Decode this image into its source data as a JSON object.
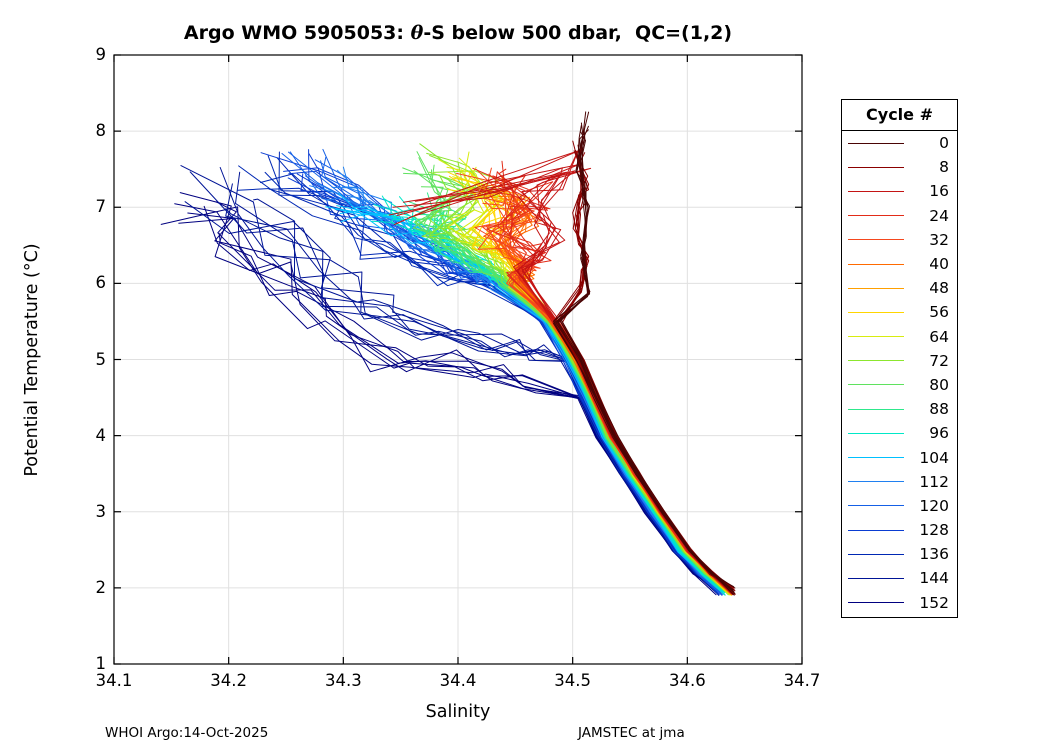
{
  "footer": {
    "left": "WHOI Argo:14-Oct-2025",
    "right": "JAMSTEC at jma"
  },
  "chart_data": {
    "type": "line",
    "title_parts": {
      "pre": "Argo WMO 5905053: ",
      "theta": "θ",
      "post": "-S below 500 dbar,  QC=(1,2)"
    },
    "xlabel": "Salinity",
    "ylabel": "Potential Temperature (°C)",
    "xlim": [
      34.1,
      34.7
    ],
    "ylim": [
      1,
      9
    ],
    "xticks": [
      "34.1",
      "34.2",
      "34.3",
      "34.4",
      "34.5",
      "34.6",
      "34.7"
    ],
    "yticks": [
      "1",
      "2",
      "3",
      "4",
      "5",
      "6",
      "7",
      "8",
      "9"
    ],
    "grid": true,
    "grid_color": "#e0e0e0",
    "axis_color": "#000000",
    "legend_title": "Cycle #",
    "legend_position": "right-outside",
    "lines_per_series": 8,
    "description": "Theta-S profiles below 500 dbar for Argo float WMO 5905053, one curve per cycle, colored from dark red (cycle 0) through jet colormap to dark navy (cycle 152). All profiles converge onto a tight salinity spine that descends to S=34.63, T=1.95.",
    "spine": [
      [
        34.455,
        6.0
      ],
      [
        34.478,
        5.5
      ],
      [
        34.498,
        5.0
      ],
      [
        34.513,
        4.5
      ],
      [
        34.528,
        4.0
      ],
      [
        34.548,
        3.5
      ],
      [
        34.57,
        3.0
      ],
      [
        34.593,
        2.5
      ],
      [
        34.612,
        2.2
      ],
      [
        34.632,
        1.95
      ]
    ],
    "series": [
      {
        "name": "0",
        "color": "#4A0505",
        "scatter": 0.004,
        "tscatter": 0.15,
        "spine_offset": 0.009,
        "join_t": 5.6,
        "upper": [
          [
            34.511,
            8.12
          ],
          [
            34.506,
            7.55
          ],
          [
            34.513,
            6.95
          ],
          [
            34.509,
            6.35
          ],
          [
            34.514,
            5.85
          ]
        ]
      },
      {
        "name": "8",
        "color": "#8B0000",
        "scatter": 0.006,
        "tscatter": 0.2,
        "spine_offset": 0.0085,
        "join_t": 5.8,
        "upper": [
          [
            34.506,
            7.82
          ],
          [
            34.512,
            7.35
          ],
          [
            34.504,
            6.85
          ],
          [
            34.511,
            6.3
          ],
          [
            34.507,
            5.95
          ]
        ]
      },
      {
        "name": "16",
        "color": "#C41414",
        "scatter": 0.02,
        "tscatter": 0.25,
        "spine_offset": 0.008,
        "join_t": 6.0,
        "upper": [
          [
            34.36,
            7.0
          ],
          [
            34.5,
            7.55
          ],
          [
            34.46,
            7.05
          ],
          [
            34.485,
            6.6
          ],
          [
            34.455,
            6.15
          ]
        ]
      },
      {
        "name": "24",
        "color": "#E22C18",
        "scatter": 0.022,
        "tscatter": 0.25,
        "spine_offset": 0.0075,
        "join_t": 6.0,
        "upper": [
          [
            34.43,
            7.45
          ],
          [
            34.465,
            7.15
          ],
          [
            34.435,
            6.75
          ],
          [
            34.47,
            6.4
          ],
          [
            34.45,
            6.1
          ]
        ]
      },
      {
        "name": "32",
        "color": "#F5481E",
        "scatter": 0.02,
        "tscatter": 0.25,
        "spine_offset": 0.007,
        "join_t": 6.0,
        "upper": [
          [
            34.41,
            7.3
          ],
          [
            34.455,
            7.0
          ],
          [
            34.425,
            6.6
          ],
          [
            34.462,
            6.25
          ],
          [
            34.448,
            6.05
          ]
        ]
      },
      {
        "name": "40",
        "color": "#FF6A00",
        "scatter": 0.016,
        "tscatter": 0.22,
        "spine_offset": 0.0065,
        "join_t": 6.0,
        "upper": [
          [
            34.44,
            7.25
          ],
          [
            34.462,
            6.9
          ],
          [
            34.442,
            6.5
          ],
          [
            34.46,
            6.15
          ],
          [
            34.452,
            6.02
          ]
        ]
      },
      {
        "name": "48",
        "color": "#FFA000",
        "scatter": 0.015,
        "tscatter": 0.22,
        "spine_offset": 0.006,
        "join_t": 6.0,
        "upper": [
          [
            34.432,
            7.3
          ],
          [
            34.452,
            6.95
          ],
          [
            34.435,
            6.55
          ],
          [
            34.458,
            6.12
          ],
          [
            34.45,
            6.0
          ]
        ]
      },
      {
        "name": "56",
        "color": "#FFD500",
        "scatter": 0.016,
        "tscatter": 0.22,
        "spine_offset": 0.006,
        "join_t": 6.0,
        "upper": [
          [
            34.405,
            7.32
          ],
          [
            34.44,
            7.0
          ],
          [
            34.42,
            6.6
          ],
          [
            34.452,
            6.2
          ],
          [
            34.448,
            6.02
          ]
        ]
      },
      {
        "name": "64",
        "color": "#D8EC10",
        "scatter": 0.018,
        "tscatter": 0.25,
        "spine_offset": 0.005,
        "join_t": 6.0,
        "upper": [
          [
            34.4,
            7.5
          ],
          [
            34.432,
            7.1
          ],
          [
            34.402,
            6.7
          ],
          [
            34.44,
            6.28
          ],
          [
            34.45,
            6.05
          ]
        ]
      },
      {
        "name": "72",
        "color": "#8CE62E",
        "scatter": 0.02,
        "tscatter": 0.28,
        "spine_offset": 0.0045,
        "join_t": 6.0,
        "upper": [
          [
            34.385,
            7.62
          ],
          [
            34.42,
            7.2
          ],
          [
            34.382,
            6.8
          ],
          [
            34.425,
            6.42
          ],
          [
            34.445,
            6.08
          ]
        ]
      },
      {
        "name": "80",
        "color": "#5FE25F",
        "scatter": 0.02,
        "tscatter": 0.25,
        "spine_offset": 0.004,
        "join_t": 6.0,
        "upper": [
          [
            34.36,
            7.5
          ],
          [
            34.4,
            7.1
          ],
          [
            34.372,
            6.75
          ],
          [
            34.41,
            6.38
          ],
          [
            34.44,
            6.05
          ]
        ]
      },
      {
        "name": "88",
        "color": "#2EE88C",
        "scatter": 0.016,
        "tscatter": 0.22,
        "spine_offset": 0.003,
        "join_t": 6.0,
        "upper": [
          [
            34.37,
            7.0
          ],
          [
            34.398,
            6.78
          ],
          [
            34.38,
            6.5
          ],
          [
            34.418,
            6.22
          ],
          [
            34.44,
            6.02
          ]
        ]
      },
      {
        "name": "96",
        "color": "#00E8C8",
        "scatter": 0.016,
        "tscatter": 0.2,
        "spine_offset": 0.001,
        "join_t": 6.0,
        "upper": [
          [
            34.335,
            7.0
          ],
          [
            34.37,
            6.78
          ],
          [
            34.4,
            6.5
          ],
          [
            34.425,
            6.2
          ],
          [
            34.44,
            6.0
          ]
        ]
      },
      {
        "name": "104",
        "color": "#00C0FF",
        "scatter": 0.016,
        "tscatter": 0.2,
        "spine_offset": 0.0,
        "join_t": 6.0,
        "upper": [
          [
            34.3,
            7.0
          ],
          [
            34.35,
            6.75
          ],
          [
            34.385,
            6.5
          ],
          [
            34.418,
            6.15
          ],
          [
            34.438,
            6.0
          ]
        ]
      },
      {
        "name": "112",
        "color": "#2080F0",
        "scatter": 0.02,
        "tscatter": 0.25,
        "spine_offset": -0.001,
        "join_t": 6.0,
        "upper": [
          [
            34.285,
            7.3
          ],
          [
            34.33,
            6.9
          ],
          [
            34.372,
            6.55
          ],
          [
            34.41,
            6.15
          ],
          [
            34.435,
            6.0
          ]
        ]
      },
      {
        "name": "120",
        "color": "#1560E6",
        "scatter": 0.022,
        "tscatter": 0.28,
        "spine_offset": -0.002,
        "join_t": 6.0,
        "upper": [
          [
            34.265,
            7.5
          ],
          [
            34.32,
            7.0
          ],
          [
            34.362,
            6.6
          ],
          [
            34.405,
            6.2
          ],
          [
            34.432,
            6.0
          ]
        ]
      },
      {
        "name": "128",
        "color": "#0A3CD2",
        "scatter": 0.024,
        "tscatter": 0.3,
        "spine_offset": -0.003,
        "join_t": 6.0,
        "upper": [
          [
            34.25,
            7.6
          ],
          [
            34.3,
            7.1
          ],
          [
            34.35,
            6.65
          ],
          [
            34.4,
            6.2
          ],
          [
            34.43,
            6.0
          ]
        ]
      },
      {
        "name": "136",
        "color": "#0028B4",
        "scatter": 0.026,
        "tscatter": 0.3,
        "spine_offset": -0.004,
        "join_t": 6.0,
        "upper": [
          [
            34.225,
            7.5
          ],
          [
            34.28,
            7.0
          ],
          [
            34.33,
            6.5
          ],
          [
            34.39,
            6.12
          ],
          [
            34.428,
            5.98
          ]
        ]
      },
      {
        "name": "144",
        "color": "#001496",
        "scatter": 0.032,
        "tscatter": 0.35,
        "spine_offset": -0.005,
        "join_t": 5.1,
        "upper": [
          [
            34.19,
            7.2
          ],
          [
            34.24,
            6.6
          ],
          [
            34.3,
            5.9
          ],
          [
            34.36,
            5.45
          ],
          [
            34.43,
            5.2
          ],
          [
            34.47,
            5.1
          ]
        ]
      },
      {
        "name": "152",
        "color": "#000080",
        "scatter": 0.03,
        "tscatter": 0.4,
        "spine_offset": -0.006,
        "join_t": 4.6,
        "upper": [
          [
            34.165,
            7.05
          ],
          [
            34.21,
            6.45
          ],
          [
            34.265,
            5.7
          ],
          [
            34.33,
            5.05
          ],
          [
            34.4,
            4.95
          ],
          [
            34.46,
            4.7
          ]
        ]
      }
    ]
  }
}
